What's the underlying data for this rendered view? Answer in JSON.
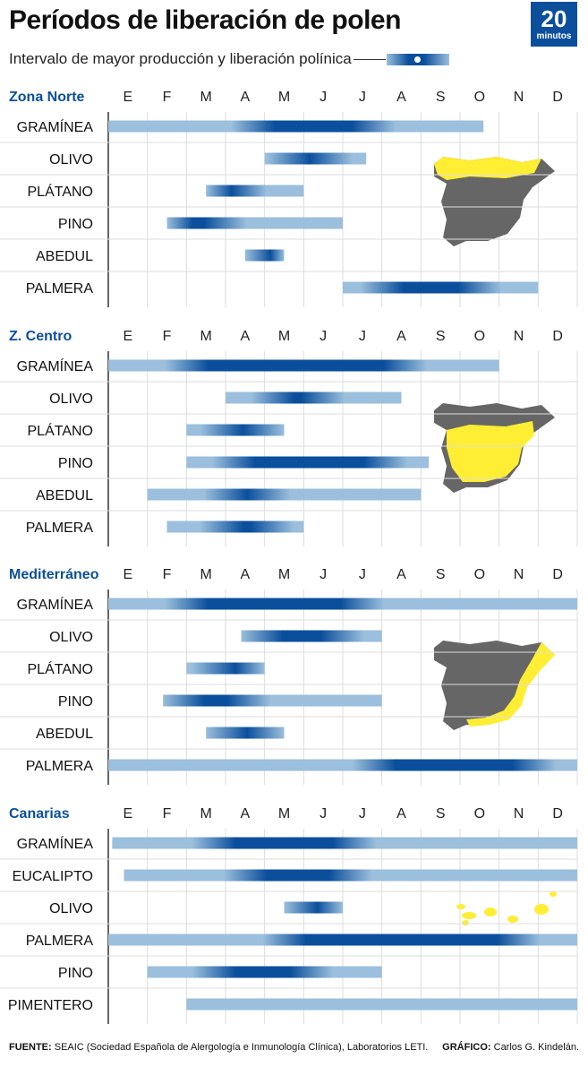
{
  "header": {
    "title": "Períodos de liberación de polen",
    "subtitle": "Intervalo de mayor producción y liberación polínica",
    "logo_number": "20",
    "logo_word": "minutos"
  },
  "colors": {
    "light_bar": "#9bbfdc",
    "dark_bar": "#0b4f9c",
    "region_title": "#0b4f9c",
    "map_gray": "#666666",
    "map_yellow": "#ffee33",
    "grid": "#dddddd"
  },
  "chart_data": [
    {
      "type": "bar",
      "title": "Zona Norte",
      "months": [
        "E",
        "F",
        "M",
        "A",
        "M",
        "J",
        "J",
        "A",
        "S",
        "O",
        "N",
        "D"
      ],
      "series": [
        {
          "name": "GRAMÍNEA",
          "start": 0.0,
          "end": 9.6,
          "peak_start": 3.7,
          "peak_end": 6.8
        },
        {
          "name": "OLIVO",
          "start": 4.0,
          "end": 6.6,
          "peak_start": 4.6,
          "peak_end": 5.7
        },
        {
          "name": "PLÁTANO",
          "start": 2.5,
          "end": 5.0,
          "peak_start": 2.6,
          "peak_end": 3.5
        },
        {
          "name": "PINO",
          "start": 1.5,
          "end": 6.0,
          "peak_start": 1.6,
          "peak_end": 3.0
        },
        {
          "name": "ABEDUL",
          "start": 3.5,
          "end": 4.5,
          "peak_start": 3.6,
          "peak_end": 4.5
        },
        {
          "name": "PALMERA",
          "start": 6.0,
          "end": 11.0,
          "peak_start": 7.0,
          "peak_end": 9.5
        }
      ]
    },
    {
      "type": "bar",
      "title": "Z. Centro",
      "months": [
        "E",
        "F",
        "M",
        "A",
        "M",
        "J",
        "J",
        "A",
        "S",
        "O",
        "N",
        "D"
      ],
      "series": [
        {
          "name": "GRAMÍNEA",
          "start": 0.0,
          "end": 10.0,
          "peak_start": 2.0,
          "peak_end": 7.6
        },
        {
          "name": "OLIVO",
          "start": 3.0,
          "end": 7.5,
          "peak_start": 4.2,
          "peak_end": 5.5
        },
        {
          "name": "PLÁTANO",
          "start": 2.0,
          "end": 4.5,
          "peak_start": 2.9,
          "peak_end": 4.0
        },
        {
          "name": "PINO",
          "start": 2.0,
          "end": 8.2,
          "peak_start": 3.2,
          "peak_end": 7.1
        },
        {
          "name": "ABEDUL",
          "start": 1.0,
          "end": 8.0,
          "peak_start": 3.0,
          "peak_end": 4.1
        },
        {
          "name": "PALMERA",
          "start": 1.5,
          "end": 5.0,
          "peak_start": 2.9,
          "peak_end": 4.2
        }
      ]
    },
    {
      "type": "bar",
      "title": "Mediterráneo",
      "months": [
        "E",
        "F",
        "M",
        "A",
        "M",
        "J",
        "J",
        "A",
        "S",
        "O",
        "N",
        "D"
      ],
      "series": [
        {
          "name": "GRAMÍNEA",
          "start": 0.0,
          "end": 12.0,
          "peak_start": 2.0,
          "peak_end": 6.5
        },
        {
          "name": "OLIVO",
          "start": 3.4,
          "end": 7.0,
          "peak_start": 3.9,
          "peak_end": 6.0
        },
        {
          "name": "PLÁTANO",
          "start": 2.0,
          "end": 4.0,
          "peak_start": 2.7,
          "peak_end": 3.7
        },
        {
          "name": "PINO",
          "start": 1.4,
          "end": 7.0,
          "peak_start": 1.9,
          "peak_end": 3.6
        },
        {
          "name": "ABEDUL",
          "start": 2.5,
          "end": 4.5,
          "peak_start": 3.0,
          "peak_end": 4.1
        },
        {
          "name": "PALMERA",
          "start": 0.0,
          "end": 12.0,
          "peak_start": 6.8,
          "peak_end": 10.9
        }
      ]
    },
    {
      "type": "bar",
      "title": "Canarias",
      "months": [
        "E",
        "F",
        "M",
        "A",
        "M",
        "J",
        "J",
        "A",
        "S",
        "O",
        "N",
        "D"
      ],
      "series": [
        {
          "name": "GRAMÍNEA",
          "start": 0.1,
          "end": 12.0,
          "peak_start": 2.7,
          "peak_end": 6.3
        },
        {
          "name": "EUCALIPTO",
          "start": 0.4,
          "end": 12.0,
          "peak_start": 3.5,
          "peak_end": 6.2
        },
        {
          "name": "OLIVO",
          "start": 4.5,
          "end": 6.0,
          "peak_start": 4.8,
          "peak_end": 5.8
        },
        {
          "name": "PALMERA",
          "start": 0.0,
          "end": 12.0,
          "peak_start": 4.5,
          "peak_end": 10.5
        },
        {
          "name": "PINO",
          "start": 1.0,
          "end": 7.0,
          "peak_start": 2.7,
          "peak_end": 5.2
        },
        {
          "name": "PIMENTERO",
          "start": 2.0,
          "end": 12.0,
          "peak_start": null,
          "peak_end": null
        }
      ]
    }
  ],
  "footer": {
    "source_label": "FUENTE:",
    "source_text": " SEAIC (Sociedad Española de Alergología e Inmunología Clínica), Laboratorios LETI.",
    "credit_label": "GRÁFICO:",
    "credit_text": " Carlos G. Kindelán."
  }
}
